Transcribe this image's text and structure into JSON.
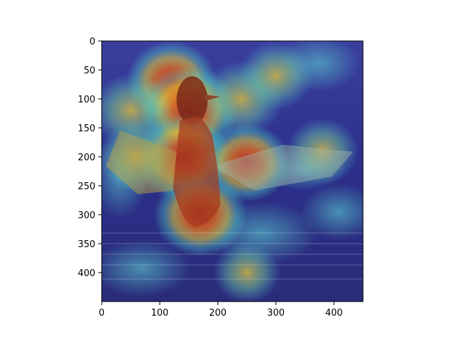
{
  "chart_data": {
    "type": "heatmap",
    "title": "",
    "xlabel": "",
    "ylabel": "",
    "xlim": [
      0,
      450
    ],
    "ylim": [
      450,
      0
    ],
    "x_ticks": [
      0,
      100,
      200,
      300,
      400
    ],
    "y_ticks": [
      0,
      50,
      100,
      150,
      200,
      250,
      300,
      350,
      400
    ],
    "colormap": "jet",
    "overlay": "heatmap over photo of a duck flapping its wings on water",
    "hotspots": [
      {
        "x": 120,
        "y": 70,
        "value": 0.85
      },
      {
        "x": 150,
        "y": 120,
        "value": 1.0
      },
      {
        "x": 140,
        "y": 200,
        "value": 0.95
      },
      {
        "x": 170,
        "y": 300,
        "value": 0.9
      },
      {
        "x": 240,
        "y": 100,
        "value": 0.75
      },
      {
        "x": 300,
        "y": 60,
        "value": 0.6
      },
      {
        "x": 50,
        "y": 120,
        "value": 0.7
      },
      {
        "x": 250,
        "y": 210,
        "value": 0.8
      },
      {
        "x": 60,
        "y": 200,
        "value": 0.65
      },
      {
        "x": 380,
        "y": 190,
        "value": 0.55
      },
      {
        "x": 250,
        "y": 400,
        "value": 0.45
      }
    ]
  }
}
